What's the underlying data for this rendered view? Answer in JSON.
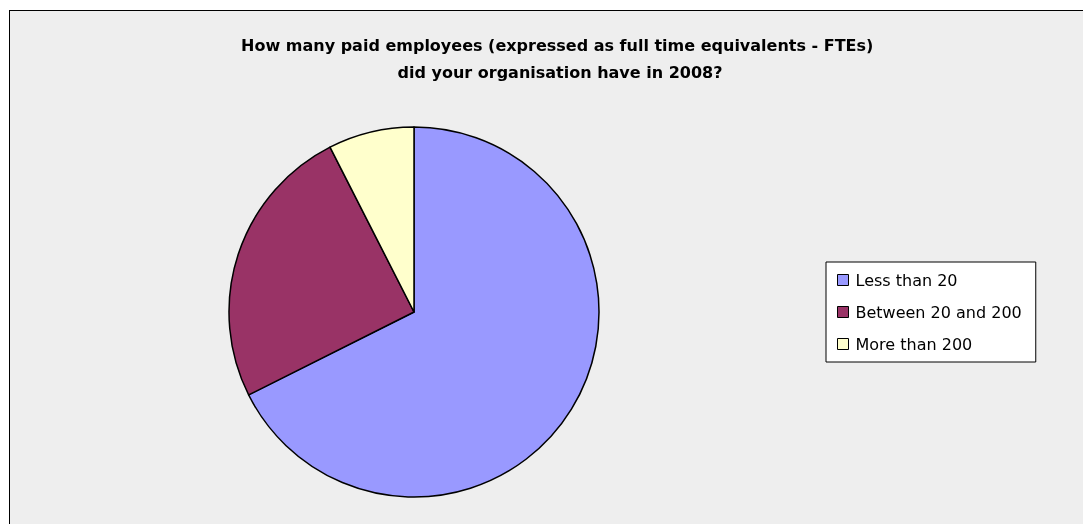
{
  "chart_data": {
    "type": "pie",
    "title": "How many paid employees (expressed as full time equivalents - FTEs) did your organisation have in 2008?",
    "categories": [
      "Less than 20",
      "Between 20 and 200",
      "More than 200"
    ],
    "values": [
      67.6,
      24.9,
      7.5
    ],
    "colors": [
      "#9999ff",
      "#993366",
      "#ffffcc"
    ],
    "legend": "right"
  }
}
